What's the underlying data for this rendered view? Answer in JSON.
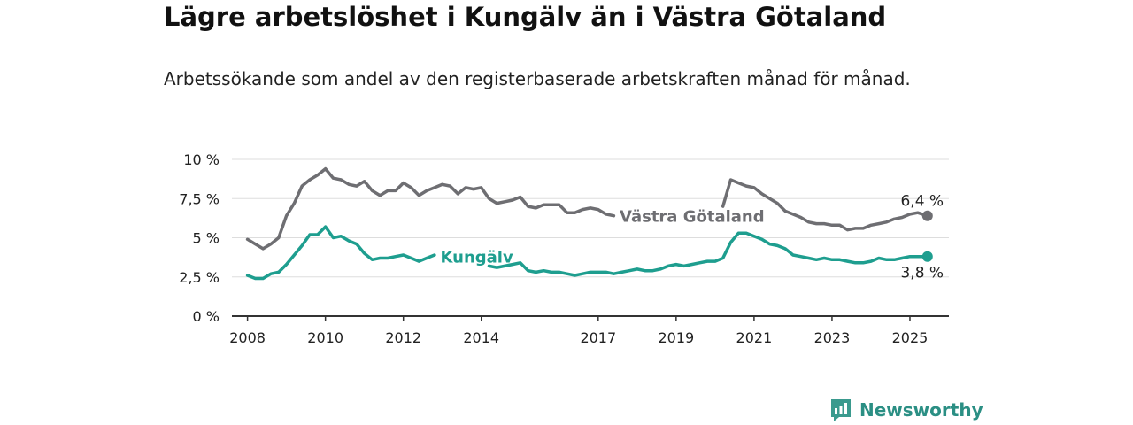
{
  "title": "Lägre arbetslöshet i Kungälv än i Västra Götaland",
  "subtitle": "Arbetssökande som andel av den registerbaserade arbetskraften månad för månad.",
  "brand": {
    "name": "Newsworthy",
    "icon": "newsworthy-logo-icon",
    "color": "#3a9a8e"
  },
  "chart_data": {
    "type": "line",
    "title": "Lägre arbetslöshet i Kungälv än i Västra Götaland",
    "ylabel": "",
    "xlabel": "",
    "ylim": [
      0,
      10
    ],
    "yticks": [
      0,
      2.5,
      5,
      7.5,
      10
    ],
    "ytick_labels": [
      "0 %",
      "2,5 %",
      "5 %",
      "7,5 %",
      "10 %"
    ],
    "xlim": [
      2007.6,
      2026.0
    ],
    "xticks": [
      2008,
      2010,
      2012,
      2014,
      2017,
      2019,
      2021,
      2023,
      2025
    ],
    "xtick_labels": [
      "2008",
      "2010",
      "2012",
      "2014",
      "2017",
      "2019",
      "2021",
      "2023",
      "2025"
    ],
    "grid": "horizontal",
    "series": [
      {
        "name": "Västra Götaland",
        "color": "#6e6e72",
        "end_label": "6,4 %",
        "x": [
          2008.0,
          2008.2,
          2008.4,
          2008.6,
          2008.8,
          2009.0,
          2009.2,
          2009.4,
          2009.6,
          2009.8,
          2010.0,
          2010.2,
          2010.4,
          2010.6,
          2010.8,
          2011.0,
          2011.2,
          2011.4,
          2011.6,
          2011.8,
          2012.0,
          2012.2,
          2012.4,
          2012.6,
          2012.8,
          2013.0,
          2013.2,
          2013.4,
          2013.6,
          2013.8,
          2014.0,
          2014.2,
          2014.4,
          2014.6,
          2014.8,
          2015.0,
          2015.2,
          2015.4,
          2015.6,
          2015.8,
          2016.0,
          2016.2,
          2016.4,
          2016.6,
          2016.8,
          2017.0,
          2017.2,
          2017.4,
          2020.2,
          2020.4,
          2020.6,
          2020.8,
          2021.0,
          2021.2,
          2021.4,
          2021.6,
          2021.8,
          2022.0,
          2022.2,
          2022.4,
          2022.6,
          2022.8,
          2023.0,
          2023.2,
          2023.4,
          2023.6,
          2023.8,
          2024.0,
          2024.2,
          2024.4,
          2024.6,
          2024.8,
          2025.0,
          2025.2,
          2025.45
        ],
        "values": [
          4.9,
          4.6,
          4.3,
          4.6,
          5.0,
          6.4,
          7.2,
          8.3,
          8.7,
          9.0,
          9.4,
          8.8,
          8.7,
          8.4,
          8.3,
          8.6,
          8.0,
          7.7,
          8.0,
          8.0,
          8.5,
          8.2,
          7.7,
          8.0,
          8.2,
          8.4,
          8.3,
          7.8,
          8.2,
          8.1,
          8.2,
          7.5,
          7.2,
          7.3,
          7.4,
          7.6,
          7.0,
          6.9,
          7.1,
          7.1,
          7.1,
          6.6,
          6.6,
          6.8,
          6.9,
          6.8,
          6.5,
          6.4,
          7.0,
          8.7,
          8.5,
          8.3,
          8.2,
          7.8,
          7.5,
          7.2,
          6.7,
          6.5,
          6.3,
          6.0,
          5.9,
          5.9,
          5.8,
          5.8,
          5.5,
          5.6,
          5.6,
          5.8,
          5.9,
          6.0,
          6.2,
          6.3,
          6.5,
          6.6,
          6.4
        ]
      },
      {
        "name": "Kungälv",
        "color": "#1e9e8f",
        "end_label": "3,8 %",
        "x": [
          2008.0,
          2008.2,
          2008.4,
          2008.6,
          2008.8,
          2009.0,
          2009.2,
          2009.4,
          2009.6,
          2009.8,
          2010.0,
          2010.2,
          2010.4,
          2010.6,
          2010.8,
          2011.0,
          2011.2,
          2011.4,
          2011.6,
          2011.8,
          2012.0,
          2012.2,
          2012.4,
          2012.6,
          2012.8,
          2014.2,
          2014.4,
          2014.6,
          2014.8,
          2015.0,
          2015.2,
          2015.4,
          2015.6,
          2015.8,
          2016.0,
          2016.2,
          2016.4,
          2016.6,
          2016.8,
          2017.0,
          2017.2,
          2017.4,
          2017.6,
          2017.8,
          2018.0,
          2018.2,
          2018.4,
          2018.6,
          2018.8,
          2019.0,
          2019.2,
          2019.4,
          2019.6,
          2019.8,
          2020.0,
          2020.2,
          2020.4,
          2020.6,
          2020.8,
          2021.0,
          2021.2,
          2021.4,
          2021.6,
          2021.8,
          2022.0,
          2022.2,
          2022.4,
          2022.6,
          2022.8,
          2023.0,
          2023.2,
          2023.4,
          2023.6,
          2023.8,
          2024.0,
          2024.2,
          2024.4,
          2024.6,
          2024.8,
          2025.0,
          2025.2,
          2025.45
        ],
        "values": [
          2.6,
          2.4,
          2.4,
          2.7,
          2.8,
          3.3,
          3.9,
          4.5,
          5.2,
          5.2,
          5.7,
          5.0,
          5.1,
          4.8,
          4.6,
          4.0,
          3.6,
          3.7,
          3.7,
          3.8,
          3.9,
          3.7,
          3.5,
          3.7,
          3.9,
          3.2,
          3.1,
          3.2,
          3.3,
          3.4,
          2.9,
          2.8,
          2.9,
          2.8,
          2.8,
          2.7,
          2.6,
          2.7,
          2.8,
          2.8,
          2.8,
          2.7,
          2.8,
          2.9,
          3.0,
          2.9,
          2.9,
          3.0,
          3.2,
          3.3,
          3.2,
          3.3,
          3.4,
          3.5,
          3.5,
          3.7,
          4.7,
          5.3,
          5.3,
          5.1,
          4.9,
          4.6,
          4.5,
          4.3,
          3.9,
          3.8,
          3.7,
          3.6,
          3.7,
          3.6,
          3.6,
          3.5,
          3.4,
          3.4,
          3.5,
          3.7,
          3.6,
          3.6,
          3.7,
          3.8,
          3.8,
          3.8
        ]
      }
    ]
  }
}
